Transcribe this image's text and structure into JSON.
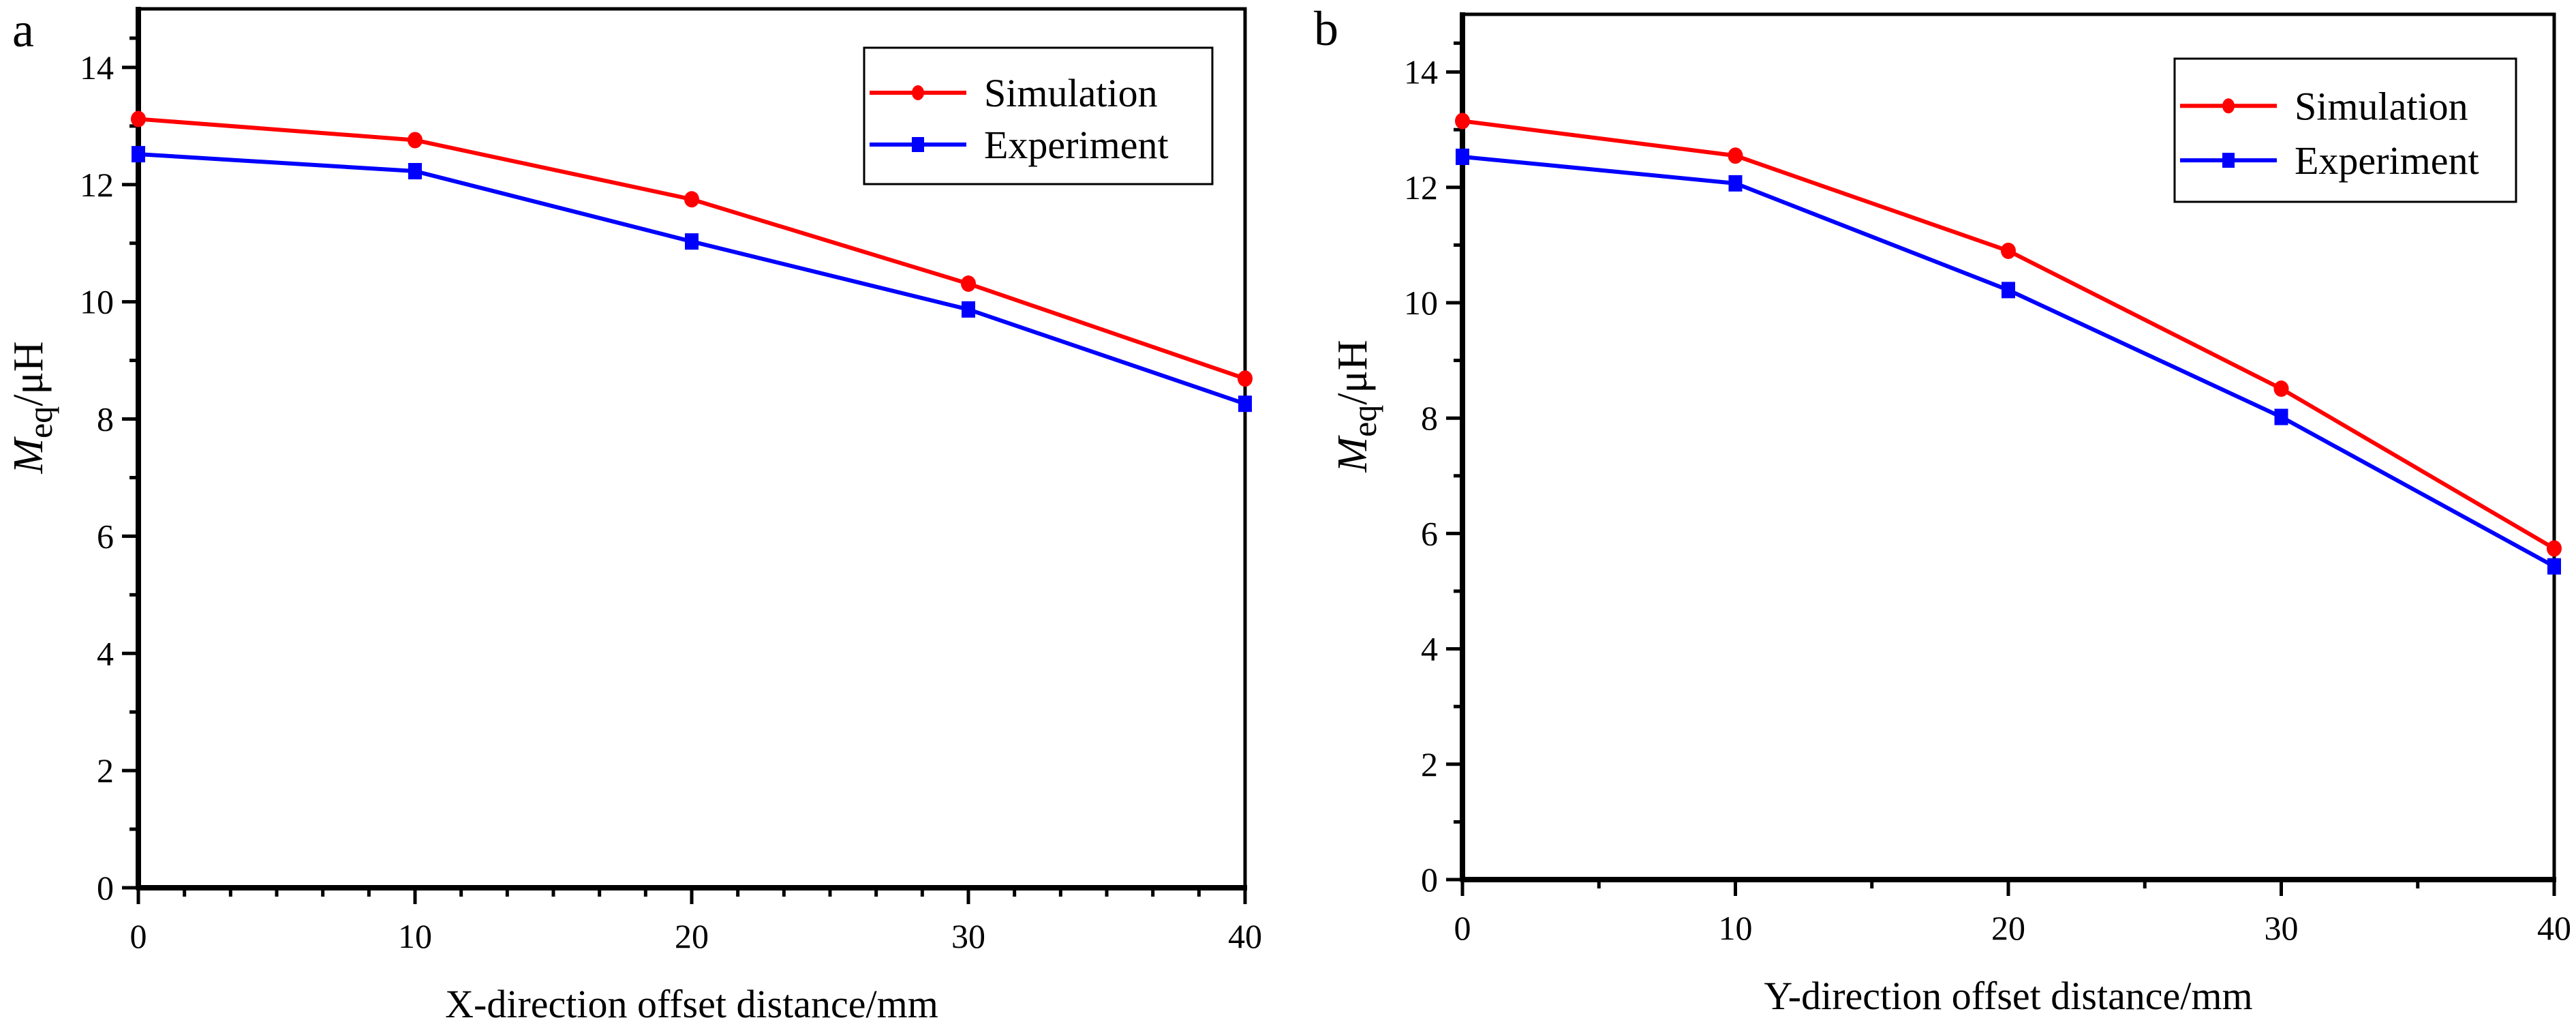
{
  "chart_data": [
    {
      "type": "line",
      "panel_label": "a",
      "title": "",
      "xlabel": "X-direction offset distance/mm",
      "ylabel": {
        "main": "M",
        "subscript": "eq",
        "unit": "/μH"
      },
      "x": [
        0,
        10,
        20,
        30,
        40
      ],
      "xlim": [
        0,
        40
      ],
      "ylim": [
        0,
        15
      ],
      "xticks": [
        0,
        10,
        20,
        30,
        40
      ],
      "xtick_labels": [
        "0",
        "10",
        "20",
        "30",
        "40"
      ],
      "x_minor_per_major": 5,
      "yticks": [
        0,
        2,
        4,
        6,
        8,
        10,
        12,
        14
      ],
      "ytick_labels": [
        "0",
        "2",
        "4",
        "6",
        "8",
        "10",
        "12",
        "14"
      ],
      "y_minor_per_major": 1,
      "grid": false,
      "legend_position": "top-right",
      "series": [
        {
          "name": "Simulation",
          "color": "#ff0000",
          "marker": "circle",
          "values": [
            13.12,
            12.76,
            11.75,
            10.31,
            8.69
          ]
        },
        {
          "name": "Experiment",
          "color": "#0000ff",
          "marker": "square",
          "values": [
            12.52,
            12.23,
            11.03,
            9.87,
            8.26
          ]
        }
      ]
    },
    {
      "type": "line",
      "panel_label": "b",
      "title": "",
      "xlabel": "Y-direction offset distance/mm",
      "ylabel": {
        "main": "M",
        "subscript": "eq",
        "unit": "/μH"
      },
      "x": [
        0,
        10,
        20,
        30,
        40
      ],
      "xlim": [
        0,
        40
      ],
      "ylim": [
        0,
        15
      ],
      "xticks": [
        0,
        10,
        20,
        30,
        40
      ],
      "xtick_labels": [
        "0",
        "10",
        "20",
        "30",
        "40"
      ],
      "x_minor_per_major": 1,
      "yticks": [
        0,
        2,
        4,
        6,
        8,
        10,
        12,
        14
      ],
      "ytick_labels": [
        "0",
        "2",
        "4",
        "6",
        "8",
        "10",
        "12",
        "14"
      ],
      "y_minor_per_major": 1,
      "grid": false,
      "legend_position": "top-right",
      "series": [
        {
          "name": "Simulation",
          "color": "#ff0000",
          "marker": "circle",
          "values": [
            13.15,
            12.55,
            10.9,
            8.51,
            5.74
          ]
        },
        {
          "name": "Experiment",
          "color": "#0000ff",
          "marker": "square",
          "values": [
            12.53,
            12.07,
            10.22,
            8.02,
            5.43
          ]
        }
      ]
    }
  ]
}
